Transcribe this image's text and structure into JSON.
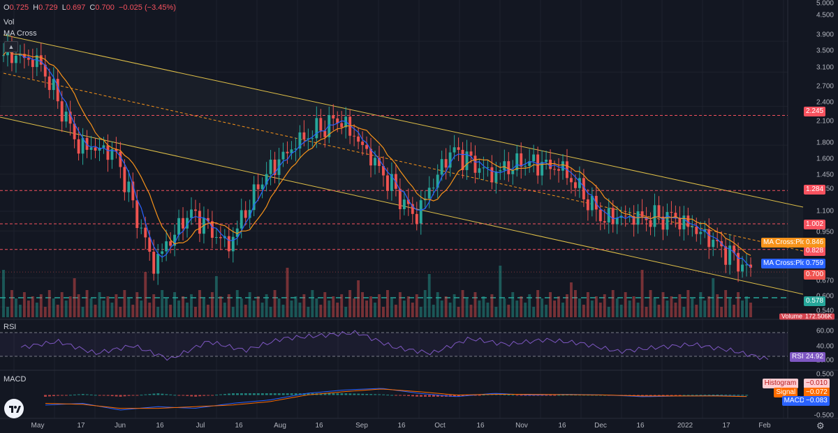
{
  "ohlc": {
    "o_label": "O",
    "o": "0.725",
    "h_label": "H",
    "h": "0.729",
    "l_label": "L",
    "l": "0.697",
    "c_label": "C",
    "c": "0.700",
    "chg": "−0.025 (−3.45%)"
  },
  "indicators": {
    "vol": "Vol",
    "ma_cross": "MA Cross",
    "rsi": "RSI",
    "macd": "MACD"
  },
  "colors": {
    "up": "#26a69a",
    "down": "#ef5350",
    "channel": "#e0c048",
    "ma_fast": "#2962ff",
    "ma_slow": "#f7931a",
    "rsi": "#7e57c2",
    "macd": "#2962ff",
    "signal": "#ff6d00",
    "hline_red": "#f7525f",
    "hline_green": "#26a69a"
  },
  "icons": {
    "collapse": "chevron-up-icon",
    "logo": "tradingview-logo-icon",
    "settings": "gear-icon"
  },
  "collapse_glyph": "▲",
  "settings_glyph": "⚙",
  "price_axis": {
    "ticks": [
      "5.000",
      "4.500",
      "3.900",
      "3.500",
      "3.100",
      "2.700",
      "2.400",
      "2.100",
      "1.800",
      "1.600",
      "1.450",
      "1.250",
      "1.100",
      "0.950",
      "0.670",
      "0.600",
      "0.540"
    ],
    "tags": [
      {
        "value": "2.245",
        "kind": "hline"
      },
      {
        "value": "1.284",
        "kind": "hline"
      },
      {
        "value": "1.002",
        "kind": "hline"
      },
      {
        "value": "0.828",
        "kind": "hline"
      },
      {
        "value": "0.700",
        "kind": "price"
      },
      {
        "value": "0.578",
        "kind": "support"
      }
    ],
    "plot_labels": [
      {
        "name": "MA Cross:Plot",
        "value": "0.846",
        "kind": "slow"
      },
      {
        "name": "MA Cross:Plot",
        "value": "0.759",
        "kind": "fast"
      }
    ],
    "volume_label": "Volume",
    "volume_value": "172.506K"
  },
  "rsi_axis": {
    "ticks": [
      "60.00",
      "40.00",
      "20.00"
    ],
    "label": "RSI",
    "value": "24.92"
  },
  "macd_axis": {
    "ticks": [
      "0.500",
      "-0.500"
    ],
    "labels": [
      {
        "name": "Histogram",
        "value": "−0.010"
      },
      {
        "name": "Signal",
        "value": "−0.072"
      },
      {
        "name": "MACD",
        "value": "−0.083"
      }
    ]
  },
  "time_axis": [
    "May",
    "17",
    "Jun",
    "16",
    "Jul",
    "16",
    "Aug",
    "16",
    "Sep",
    "16",
    "Oct",
    "16",
    "Nov",
    "16",
    "Dec",
    "16",
    "2022",
    "17",
    "Feb"
  ],
  "chart_data": {
    "type": "candlestick",
    "log_scale": true,
    "grid": true,
    "x": [
      "Apr 26",
      "May 10",
      "May 24",
      "Jun 7",
      "Jun 21",
      "Jul 5",
      "Jul 19",
      "Aug 2",
      "Aug 16",
      "Aug 30",
      "Sep 13",
      "Sep 27",
      "Oct 11",
      "Oct 25",
      "Nov 8",
      "Nov 22",
      "Dec 6",
      "Dec 20",
      "Jan 3",
      "Jan 17",
      "Jan 27"
    ],
    "close": [
      3.6,
      3.3,
      1.8,
      1.7,
      0.74,
      1.1,
      0.85,
      1.45,
      1.9,
      2.2,
      1.55,
      1.05,
      1.75,
      1.45,
      1.6,
      1.5,
      1.05,
      1.05,
      1.05,
      0.88,
      0.7
    ],
    "horizontal_levels": [
      2.245,
      1.284,
      1.002,
      0.828,
      0.7,
      0.578
    ],
    "rsi": [
      45,
      55,
      35,
      48,
      25,
      55,
      40,
      60,
      65,
      70,
      45,
      35,
      60,
      50,
      58,
      52,
      38,
      45,
      50,
      40,
      25
    ],
    "rsi_levels": [
      70,
      30
    ],
    "macd": [
      -0.3,
      -0.25,
      -0.45,
      -0.35,
      -0.4,
      -0.25,
      -0.15,
      0.05,
      0.15,
      0.2,
      0.05,
      -0.05,
      0.05,
      0.0,
      0.02,
      0.0,
      -0.05,
      -0.03,
      -0.02,
      -0.05,
      -0.083
    ],
    "signal": [
      -0.25,
      -0.28,
      -0.4,
      -0.4,
      -0.35,
      -0.3,
      -0.2,
      0.0,
      0.1,
      0.18,
      0.1,
      0.0,
      0.02,
      0.02,
      0.01,
      0.0,
      -0.03,
      -0.03,
      -0.03,
      -0.05,
      -0.072
    ]
  }
}
